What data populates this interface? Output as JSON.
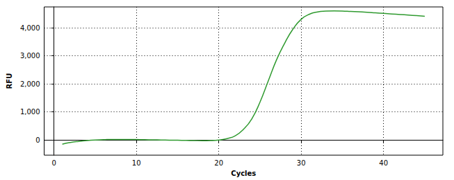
{
  "chart_data": {
    "type": "line",
    "x_label": "Cycles",
    "y_label": "RFU",
    "x": [
      1,
      2,
      3,
      4,
      5,
      6,
      7,
      8,
      9,
      10,
      11,
      12,
      13,
      14,
      15,
      16,
      17,
      18,
      19,
      20,
      21,
      22,
      23,
      24,
      25,
      26,
      27,
      28,
      29,
      30,
      31,
      32,
      33,
      34,
      35,
      36,
      37,
      38,
      39,
      40,
      41,
      42,
      43,
      44,
      45
    ],
    "values": [
      -150,
      -90,
      -50,
      -20,
      0,
      10,
      20,
      20,
      20,
      15,
      10,
      5,
      0,
      -5,
      -10,
      -15,
      -20,
      -25,
      -20,
      0,
      50,
      150,
      380,
      750,
      1350,
      2100,
      2850,
      3450,
      3950,
      4300,
      4480,
      4560,
      4590,
      4600,
      4595,
      4580,
      4565,
      4550,
      4530,
      4510,
      4490,
      4470,
      4450,
      4430,
      4410
    ],
    "color": "#2f9a2f",
    "xlim": [
      -1.2,
      47.2
    ],
    "xticks": [
      0,
      10,
      20,
      30,
      40
    ],
    "ylim": [
      -540,
      4740
    ],
    "yticks": [
      0,
      1000,
      2000,
      3000,
      4000
    ],
    "grid": true
  }
}
